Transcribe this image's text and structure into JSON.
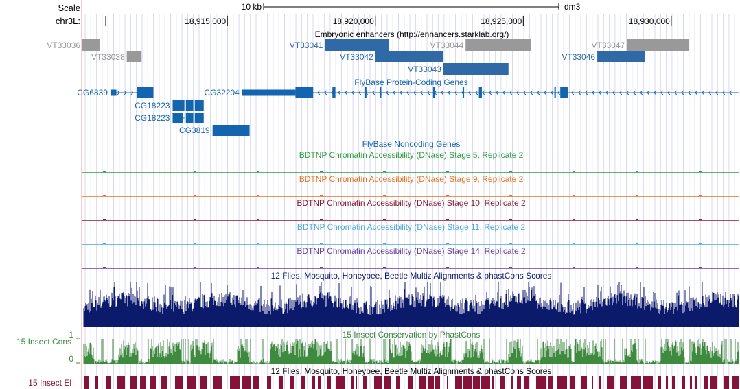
{
  "ruler": {
    "scale_label": "Scale",
    "scale_size": "10 kb",
    "assembly": "dm3",
    "chrom_label": "chr3L:",
    "positions": [
      {
        "label": "18,915,000",
        "pos": 18915000
      },
      {
        "label": "18,920,000",
        "pos": 18920000
      },
      {
        "label": "18,925,000",
        "pos": 18925000
      },
      {
        "label": "18,930,000",
        "pos": 18930000
      }
    ]
  },
  "view": {
    "start": 18910100,
    "end": 18932300
  },
  "colors": {
    "gene": "#1465b0",
    "enhancer_active": "#2f6aa6",
    "enhancer_inactive": "#999999",
    "stage5": "#2b9d3b",
    "stage9": "#e8711f",
    "stage10": "#8a1c2f",
    "stage11": "#4aaad8",
    "stage14": "#6a3fa0",
    "multiz": "#0c1a6c",
    "phastcons": "#3e8a3e",
    "elements": "#84133a",
    "base_pos": "#ffcccc",
    "grid": "#d8d8f2"
  },
  "tracks": {
    "enhancers": {
      "title": "Embryonic enhancers (http://enhancers.starklab.org/)",
      "items": [
        {
          "name": "VT33036",
          "start": 18910100,
          "end": 18910700,
          "row": 0,
          "active": false
        },
        {
          "name": "VT33038",
          "start": 18911600,
          "end": 18912100,
          "row": 1,
          "active": false
        },
        {
          "name": "VT33041",
          "start": 18918300,
          "end": 18920450,
          "row": 0,
          "active": true
        },
        {
          "name": "VT33042",
          "start": 18920000,
          "end": 18922300,
          "row": 1,
          "active": true
        },
        {
          "name": "VT33043",
          "start": 18922300,
          "end": 18924500,
          "row": 2,
          "active": true
        },
        {
          "name": "VT33044",
          "start": 18923050,
          "end": 18925250,
          "row": 0,
          "active": false
        },
        {
          "name": "VT33046",
          "start": 18927500,
          "end": 18929100,
          "row": 1,
          "active": true
        },
        {
          "name": "VT33047",
          "start": 18928500,
          "end": 18930600,
          "row": 0,
          "active": false
        }
      ]
    },
    "protein_genes": {
      "title": "FlyBase Protein-Coding Genes",
      "items": [
        {
          "name": "CG6839",
          "start": 18911050,
          "end": 18912500,
          "row": 0,
          "exons": [
            [
              18911050,
              18911250
            ],
            [
              18911950,
              18912500
            ]
          ]
        },
        {
          "name": "CG32204",
          "start": 18915500,
          "end": 18932300,
          "row": 0,
          "exons": [
            [
              18915500,
              18917300
            ],
            [
              18917300,
              18917900
            ],
            [
              18918550,
              18918650
            ],
            [
              18919650,
              18919700
            ],
            [
              18920150,
              18920200
            ],
            [
              18921950,
              18922000
            ],
            [
              18922950,
              18923000
            ],
            [
              18923500,
              18923600
            ],
            [
              18926050,
              18926100
            ],
            [
              18926250,
              18926500
            ]
          ]
        },
        {
          "name": "CG18223",
          "start": 18913150,
          "end": 18914200,
          "row": 1,
          "exons": [
            [
              18913150,
              18913550
            ],
            [
              18913550,
              18913850
            ],
            [
              18913850,
              18914200
            ]
          ]
        },
        {
          "name": "CG18223",
          "start": 18913150,
          "end": 18914200,
          "row": 2,
          "exons": [
            [
              18913150,
              18913500
            ],
            [
              18913550,
              18913850
            ],
            [
              18913850,
              18914200
            ]
          ]
        },
        {
          "name": "CG3819",
          "start": 18914500,
          "end": 18915750,
          "row": 3,
          "exons": [
            [
              18914500,
              18915650
            ],
            [
              18915600,
              18915750
            ]
          ]
        }
      ]
    },
    "noncoding_genes": {
      "title": "FlyBase Noncoding Genes"
    },
    "dnase": [
      {
        "title": "BDTNP Chromatin Accessibility (DNase) Stage 5, Replicate 2",
        "color_key": "stage5"
      },
      {
        "title": "BDTNP Chromatin Accessibility (DNase) Stage 9, Replicate 2",
        "color_key": "stage9"
      },
      {
        "title": "BDTNP Chromatin Accessibility (DNase) Stage 10, Replicate 2",
        "color_key": "stage10"
      },
      {
        "title": "BDTNP Chromatin Accessibility (DNase) Stage 11, Replicate 2",
        "color_key": "stage11"
      },
      {
        "title": "BDTNP Chromatin Accessibility (DNase) Stage 14, Replicate 2",
        "color_key": "stage14"
      }
    ],
    "multiz": {
      "title": "12 Flies, Mosquito, Honeybee, Beetle Multiz Alignments & phastCons Scores"
    },
    "insect_cons": {
      "title": "15 Insect Conservation by PhastCons",
      "side_label": "15 Insect Cons",
      "ymax": "1",
      "ymin": "0"
    },
    "insect_el": {
      "title": "12 Flies, Mosquito, Honeybee, Beetle Multiz Alignments & phastCons Scores",
      "side_label": "15 Insect El"
    }
  }
}
